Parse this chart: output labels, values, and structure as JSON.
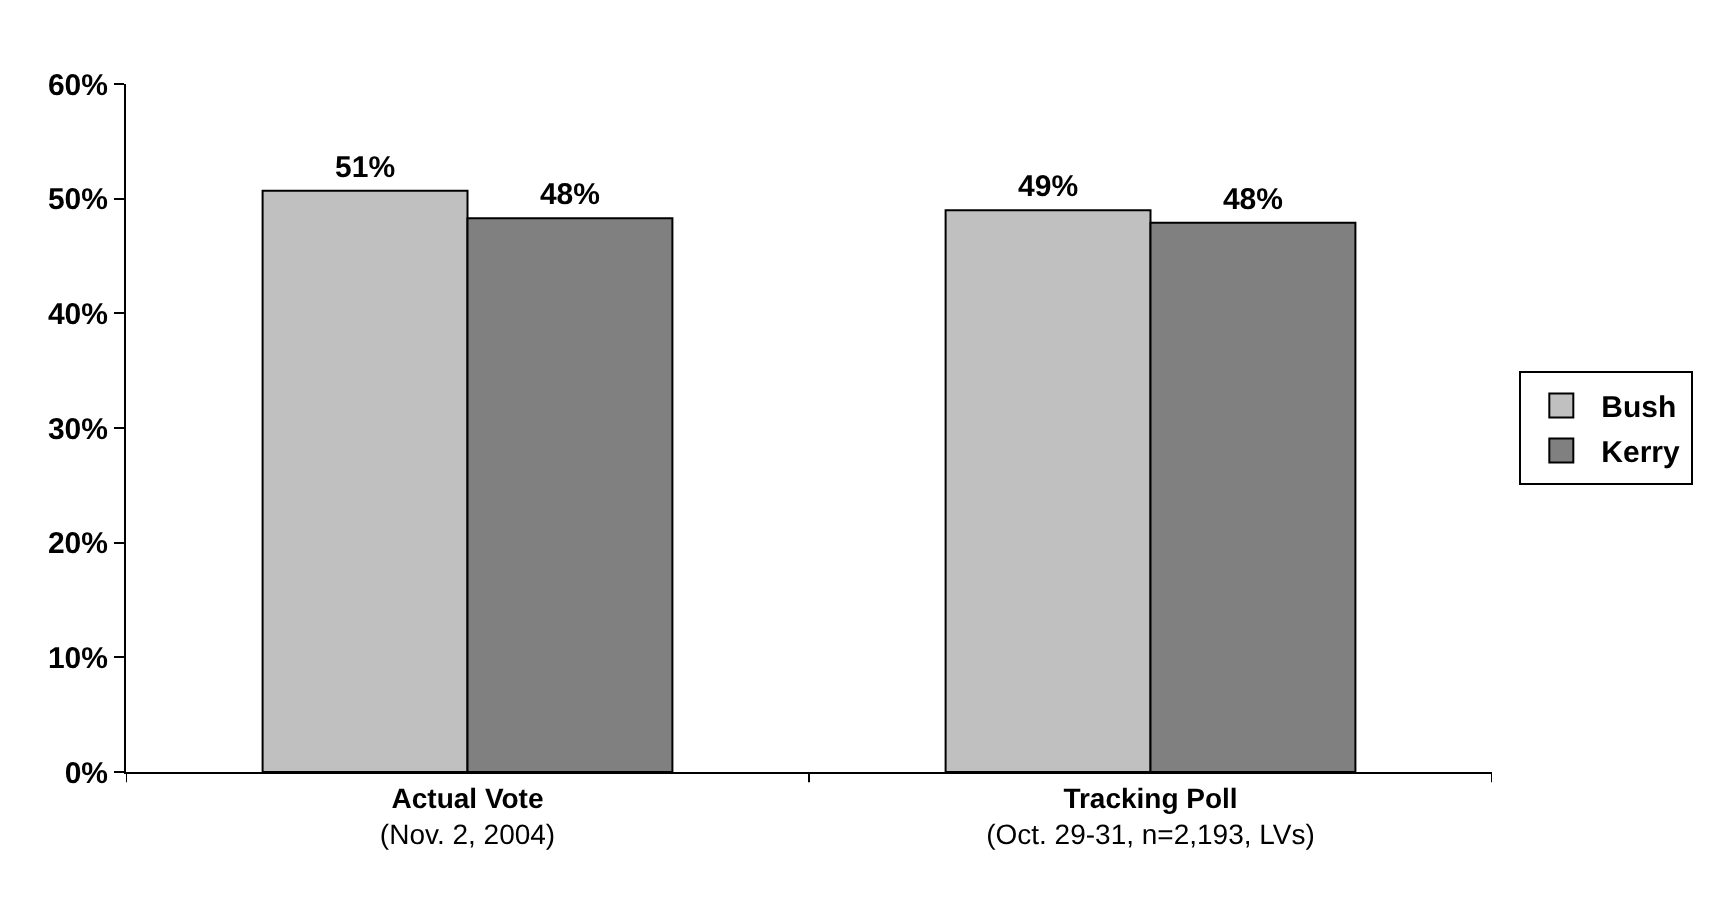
{
  "chart_data": {
    "type": "bar",
    "categories": [
      "Actual Vote\n(Nov. 2, 2004)",
      "Tracking Poll\n(Oct. 29-31, n=2,193, LVs)"
    ],
    "series": [
      {
        "name": "Bush",
        "color": "#c0c0c0",
        "values": [
          50.7,
          49.0
        ],
        "value_labels": [
          "51%",
          "49%"
        ]
      },
      {
        "name": "Kerry",
        "color": "#808080",
        "values": [
          48.3,
          47.9
        ],
        "value_labels": [
          "48%",
          "48%"
        ]
      }
    ],
    "ylim": [
      0,
      60
    ],
    "yticks": [
      {
        "value": 0,
        "label": "0%"
      },
      {
        "value": 10,
        "label": "10%"
      },
      {
        "value": 20,
        "label": "20%"
      },
      {
        "value": 30,
        "label": "30%"
      },
      {
        "value": 40,
        "label": "40%"
      },
      {
        "value": 50,
        "label": "50%"
      },
      {
        "value": 60,
        "label": "60%"
      }
    ],
    "grid": false,
    "legend": "right"
  }
}
